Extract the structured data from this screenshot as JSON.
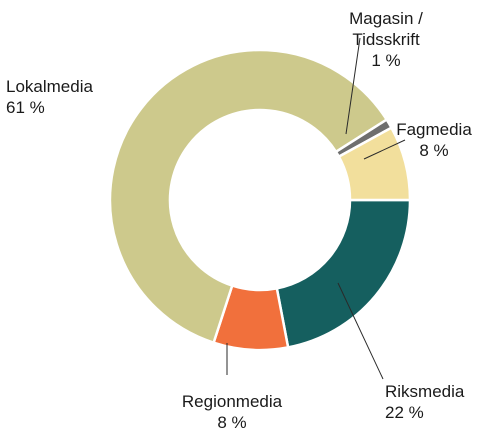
{
  "chart_data": {
    "type": "pie",
    "variant": "donut",
    "title": "",
    "slices": [
      {
        "label": "Riksmedia",
        "value": 22,
        "value_label": "22 %",
        "color": "#155f5f"
      },
      {
        "label": "Regionmedia",
        "value": 8,
        "value_label": "8 %",
        "color": "#f1703c"
      },
      {
        "label": "Lokalmedia",
        "value": 61,
        "value_label": "61 %",
        "color": "#cdc98c"
      },
      {
        "label_lines": [
          "Magasin /",
          "Tidsskrift"
        ],
        "value": 1,
        "value_label": "1 %",
        "color": "#6e6e6e"
      },
      {
        "label": "Fagmedia",
        "value": 8,
        "value_label": "8 %",
        "color": "#f2df9c"
      }
    ]
  }
}
